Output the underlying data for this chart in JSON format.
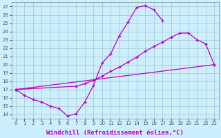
{
  "background_color": "#cceeff",
  "grid_color": "#aacccc",
  "line_color": "#bb00bb",
  "xlabel": "Windchill (Refroidissement éolien,°C)",
  "xlabel_fontsize": 6.5,
  "xlim": [
    -0.5,
    23.5
  ],
  "ylim": [
    13.5,
    27.5
  ],
  "xticks": [
    0,
    1,
    2,
    3,
    4,
    5,
    6,
    7,
    8,
    9,
    10,
    11,
    12,
    13,
    14,
    15,
    16,
    17,
    18,
    19,
    20,
    21,
    22,
    23
  ],
  "yticks": [
    14,
    15,
    16,
    17,
    18,
    19,
    20,
    21,
    22,
    23,
    24,
    25,
    26,
    27
  ],
  "curve1_x": [
    0,
    1,
    2,
    3,
    4,
    5,
    6,
    7,
    8,
    9,
    10,
    11,
    12,
    13,
    14,
    15,
    16,
    17
  ],
  "curve1_y": [
    17.0,
    16.3,
    15.8,
    15.5,
    15.0,
    14.7,
    13.8,
    14.1,
    15.5,
    17.5,
    20.2,
    21.3,
    23.5,
    25.1,
    26.9,
    27.1,
    26.6,
    25.3
  ],
  "line1_x": [
    0,
    23
  ],
  "line1_y": [
    17.0,
    20.0
  ],
  "curve2_x": [
    0,
    7,
    8,
    9,
    10,
    11,
    12,
    13,
    14,
    15,
    16,
    17,
    18,
    19,
    20,
    21,
    22,
    23
  ],
  "curve2_y": [
    17.0,
    17.4,
    17.7,
    18.1,
    18.6,
    19.2,
    19.7,
    20.3,
    20.9,
    21.6,
    22.2,
    22.7,
    23.3,
    23.8,
    23.8,
    23.0,
    22.5,
    20.0
  ]
}
